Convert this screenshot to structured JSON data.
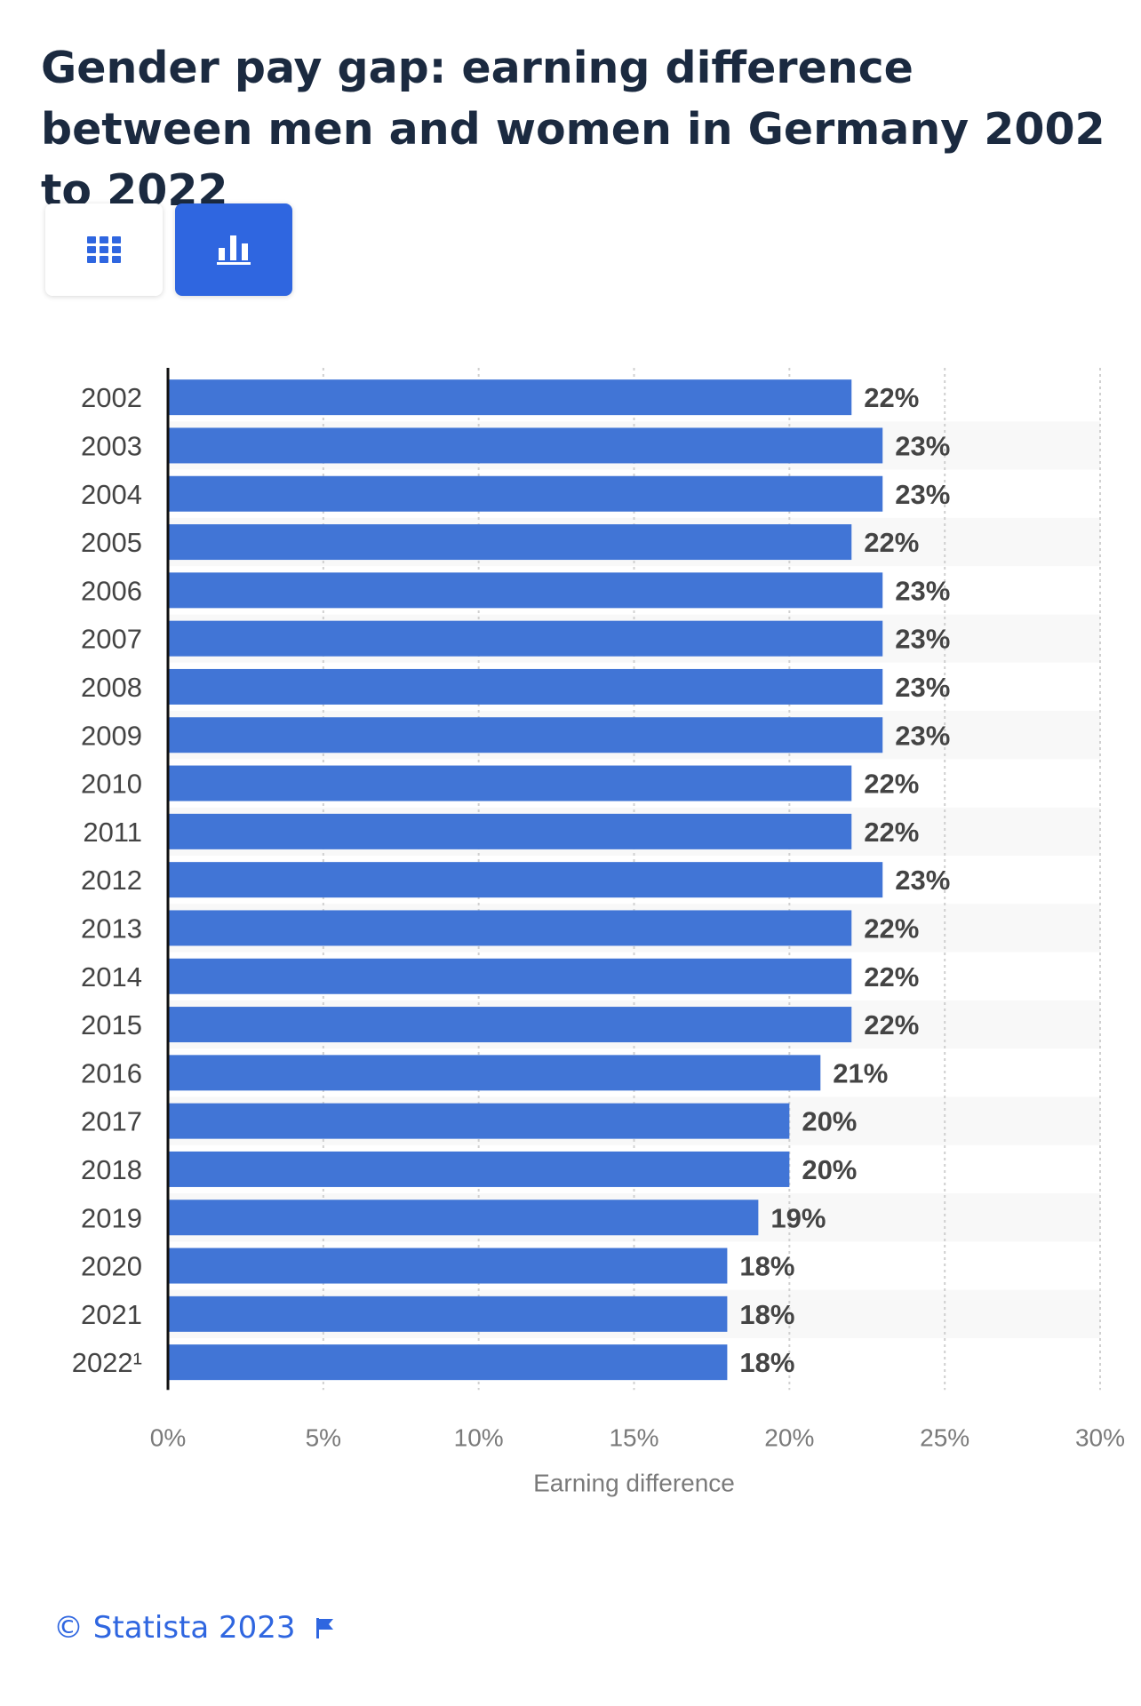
{
  "header": {
    "title": "Gender pay gap: earning difference between men and women in Germany 2002 to 2022"
  },
  "view_toggle": {
    "table_icon": "grid-icon",
    "chart_icon": "bar-chart-icon",
    "active": "chart"
  },
  "chart_data": {
    "type": "bar",
    "orientation": "horizontal",
    "categories": [
      "2002",
      "2003",
      "2004",
      "2005",
      "2006",
      "2007",
      "2008",
      "2009",
      "2010",
      "2011",
      "2012",
      "2013",
      "2014",
      "2015",
      "2016",
      "2017",
      "2018",
      "2019",
      "2020",
      "2021",
      "2022¹"
    ],
    "values": [
      22,
      23,
      23,
      22,
      23,
      23,
      23,
      23,
      22,
      22,
      23,
      22,
      22,
      22,
      21,
      20,
      20,
      19,
      18,
      18,
      18
    ],
    "value_labels": [
      "22%",
      "23%",
      "23%",
      "22%",
      "23%",
      "23%",
      "23%",
      "23%",
      "22%",
      "22%",
      "23%",
      "22%",
      "22%",
      "22%",
      "21%",
      "20%",
      "20%",
      "19%",
      "18%",
      "18%",
      "18%"
    ],
    "xlabel": "Earning difference",
    "ylabel": "",
    "xlim": [
      0,
      30
    ],
    "ticks": [
      0,
      5,
      10,
      15,
      20,
      25,
      30
    ],
    "tick_labels": [
      "0%",
      "5%",
      "10%",
      "15%",
      "20%",
      "25%",
      "30%"
    ],
    "grid": true,
    "bar_color": "#4175d6"
  },
  "footer": {
    "copyright": "© Statista 2023",
    "flag_icon": "flag-icon",
    "link_color": "#2f66e0"
  }
}
